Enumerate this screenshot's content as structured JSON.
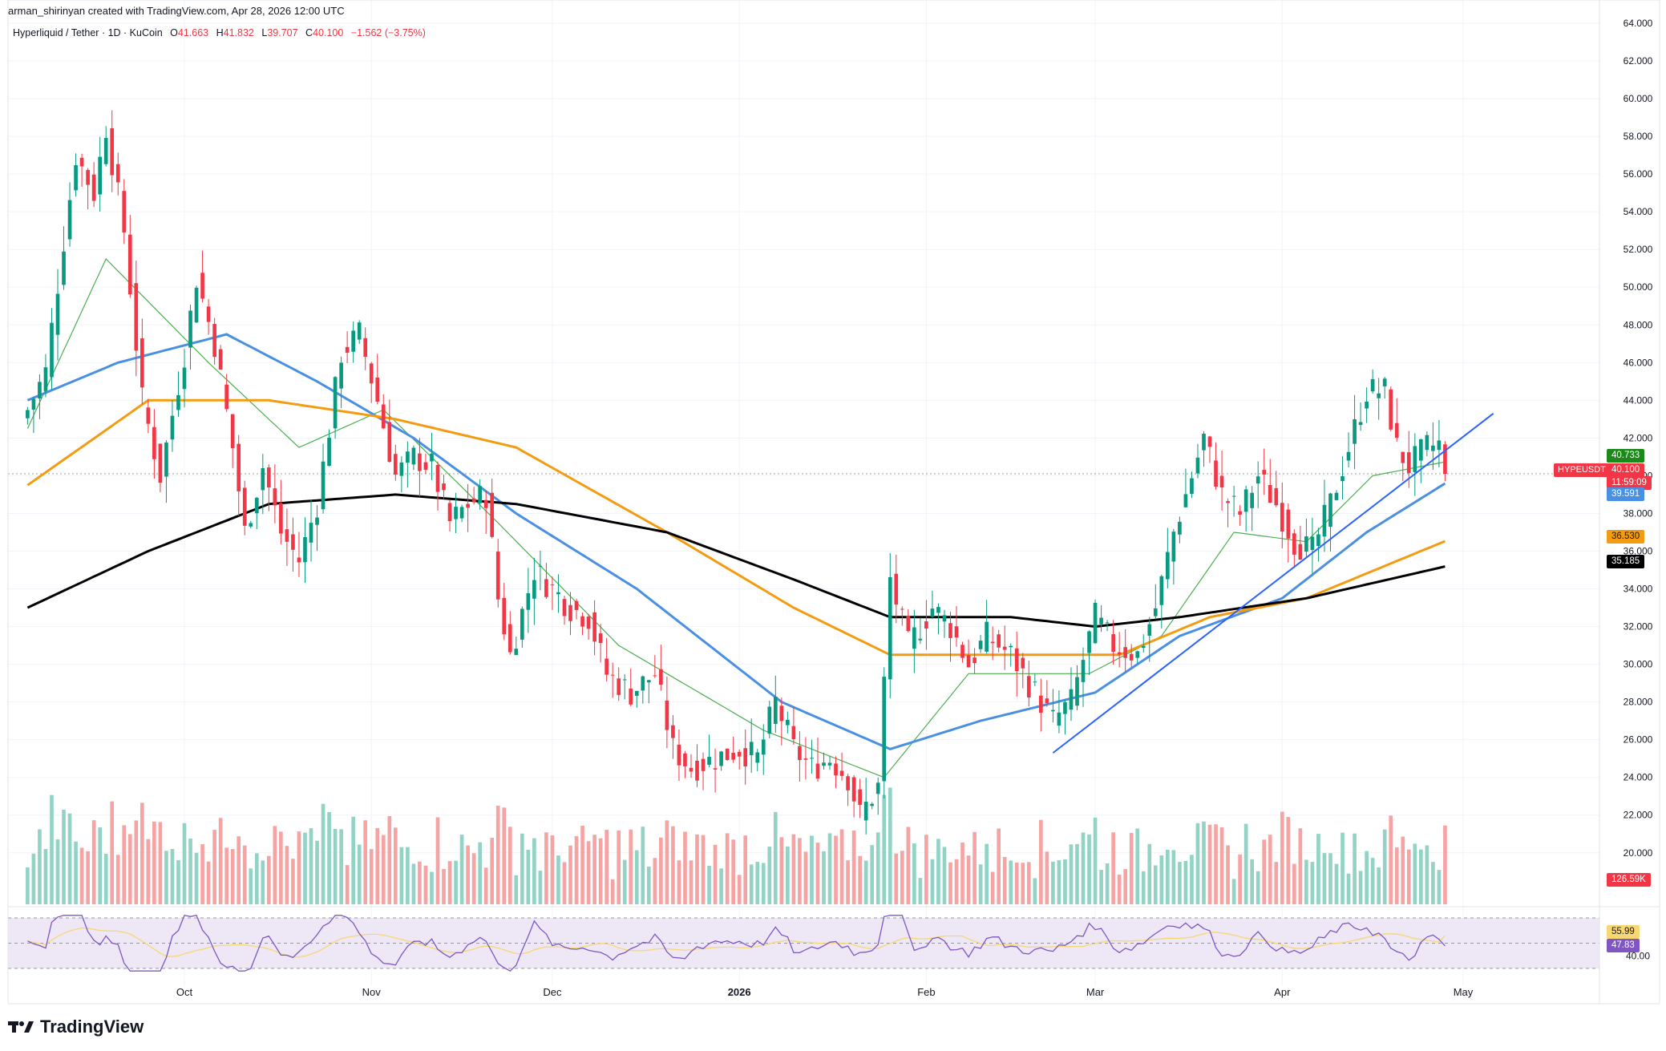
{
  "credit_line": "arman_shirinyan created with TradingView.com, Apr 28, 2026 12:00 UTC",
  "legend": {
    "symbol": "Hyperliquid / Tether · 1D · KuCoin",
    "o_label": "O",
    "o_value": "41.663",
    "h_label": "H",
    "h_value": "41.832",
    "l_label": "L",
    "l_value": "39.707",
    "c_label": "C",
    "c_value": "40.100",
    "change": "−1.562 (−3.75%)"
  },
  "price_tags": {
    "ma_green": "40.733",
    "last_price": "40.100",
    "countdown": "11:59:09",
    "symbol": "HYPEUSDT",
    "ma_blue": "39.591",
    "ma_orange": "36.530",
    "ma_black": "35.185",
    "volume": "126.59K",
    "rsi_ma": "55.99",
    "rsi": "47.83"
  },
  "brand": "TradingView",
  "colors": {
    "up": "#089981",
    "down": "#f23645",
    "vol_up": "#92d3c6",
    "vol_down": "#f5a3a3",
    "ma_green": "#4caf50",
    "ma_blue": "#4a90e2",
    "ma_orange": "#f39c12",
    "ma_black": "#000000",
    "trendline": "#2962ff",
    "rsi": "#7e57c2",
    "rsi_ma": "#f7d774",
    "rsi_band": "#ede7f6"
  },
  "chart_data": {
    "type": "candlestick",
    "title": "Hyperliquid / Tether · 1D · KuCoin",
    "y_axis_ticks": [
      "64.000",
      "62.000",
      "60.000",
      "58.000",
      "56.000",
      "54.000",
      "52.000",
      "50.000",
      "48.000",
      "46.000",
      "44.000",
      "42.000",
      "40.000",
      "38.000",
      "36.000",
      "34.000",
      "32.000",
      "30.000",
      "28.000",
      "26.000",
      "24.000",
      "22.000",
      "20.000"
    ],
    "ylim": [
      19.0,
      64.0
    ],
    "x_axis_labels": [
      "Oct",
      "Nov",
      "Dec",
      "2026",
      "Feb",
      "Mar",
      "Apr",
      "May"
    ],
    "ohlc_waypoints": [
      {
        "date": "2025-09-05",
        "close": 43.5
      },
      {
        "date": "2025-09-08",
        "close": 45.5
      },
      {
        "date": "2025-09-11",
        "close": 52.5
      },
      {
        "date": "2025-09-13",
        "close": 57.0
      },
      {
        "date": "2025-09-16",
        "close": 55.0
      },
      {
        "date": "2025-09-18",
        "close": 58.5
      },
      {
        "date": "2025-09-21",
        "close": 53.0
      },
      {
        "date": "2025-09-24",
        "close": 44.0
      },
      {
        "date": "2025-09-27",
        "close": 40.0
      },
      {
        "date": "2025-10-01",
        "close": 46.5
      },
      {
        "date": "2025-10-03",
        "close": 50.5
      },
      {
        "date": "2025-10-06",
        "close": 47.0
      },
      {
        "date": "2025-10-09",
        "close": 41.5
      },
      {
        "date": "2025-10-11",
        "close": 37.0
      },
      {
        "date": "2025-10-14",
        "close": 40.5
      },
      {
        "date": "2025-10-17",
        "close": 37.0
      },
      {
        "date": "2025-10-20",
        "close": 35.5
      },
      {
        "date": "2025-10-23",
        "close": 38.5
      },
      {
        "date": "2025-10-27",
        "close": 46.5
      },
      {
        "date": "2025-10-30",
        "close": 47.5
      },
      {
        "date": "2025-11-02",
        "close": 44.0
      },
      {
        "date": "2025-11-05",
        "close": 40.0
      },
      {
        "date": "2025-11-08",
        "close": 41.0
      },
      {
        "date": "2025-11-11",
        "close": 40.5
      },
      {
        "date": "2025-11-14",
        "close": 37.5
      },
      {
        "date": "2025-11-17",
        "close": 38.5
      },
      {
        "date": "2025-11-20",
        "close": 39.0
      },
      {
        "date": "2025-11-22",
        "close": 33.5
      },
      {
        "date": "2025-11-24",
        "close": 30.5
      },
      {
        "date": "2025-11-28",
        "close": 35.0
      },
      {
        "date": "2025-12-01",
        "close": 34.0
      },
      {
        "date": "2025-12-04",
        "close": 33.0
      },
      {
        "date": "2025-12-07",
        "close": 32.5
      },
      {
        "date": "2025-12-10",
        "close": 29.5
      },
      {
        "date": "2025-12-14",
        "close": 28.5
      },
      {
        "date": "2025-12-18",
        "close": 29.5
      },
      {
        "date": "2025-12-21",
        "close": 25.5
      },
      {
        "date": "2025-12-24",
        "close": 24.5
      },
      {
        "date": "2025-12-28",
        "close": 25.0
      },
      {
        "date": "2026-01-01",
        "close": 25.5
      },
      {
        "date": "2026-01-04",
        "close": 25.0
      },
      {
        "date": "2026-01-07",
        "close": 28.0
      },
      {
        "date": "2026-01-10",
        "close": 25.5
      },
      {
        "date": "2026-01-13",
        "close": 24.5
      },
      {
        "date": "2026-01-16",
        "close": 25.0
      },
      {
        "date": "2026-01-19",
        "close": 24.0
      },
      {
        "date": "2026-01-21",
        "close": 22.0
      },
      {
        "date": "2026-01-24",
        "close": 23.5
      },
      {
        "date": "2026-01-26",
        "close": 34.5
      },
      {
        "date": "2026-01-29",
        "close": 31.0
      },
      {
        "date": "2026-02-02",
        "close": 33.0
      },
      {
        "date": "2026-02-05",
        "close": 32.0
      },
      {
        "date": "2026-02-08",
        "close": 30.0
      },
      {
        "date": "2026-02-11",
        "close": 31.5
      },
      {
        "date": "2026-02-15",
        "close": 30.5
      },
      {
        "date": "2026-02-19",
        "close": 28.5
      },
      {
        "date": "2026-02-22",
        "close": 27.0
      },
      {
        "date": "2026-02-25",
        "close": 28.0
      },
      {
        "date": "2026-03-01",
        "close": 32.5
      },
      {
        "date": "2026-03-04",
        "close": 31.0
      },
      {
        "date": "2026-03-08",
        "close": 30.5
      },
      {
        "date": "2026-03-11",
        "close": 33.0
      },
      {
        "date": "2026-03-14",
        "close": 37.0
      },
      {
        "date": "2026-03-17",
        "close": 40.0
      },
      {
        "date": "2026-03-19",
        "close": 42.0
      },
      {
        "date": "2026-03-22",
        "close": 39.0
      },
      {
        "date": "2026-03-25",
        "close": 38.0
      },
      {
        "date": "2026-03-28",
        "close": 40.0
      },
      {
        "date": "2026-03-31",
        "close": 38.5
      },
      {
        "date": "2026-04-03",
        "close": 36.5
      },
      {
        "date": "2026-04-06",
        "close": 36.0
      },
      {
        "date": "2026-04-09",
        "close": 38.5
      },
      {
        "date": "2026-04-12",
        "close": 41.5
      },
      {
        "date": "2026-04-15",
        "close": 44.5
      },
      {
        "date": "2026-04-18",
        "close": 44.5
      },
      {
        "date": "2026-04-20",
        "close": 41.5
      },
      {
        "date": "2026-04-22",
        "close": 40.5
      },
      {
        "date": "2026-04-25",
        "close": 41.5
      },
      {
        "date": "2026-04-27",
        "close": 41.663
      },
      {
        "date": "2026-04-28",
        "close": 40.1
      }
    ],
    "last_candle": {
      "date": "2026-04-28",
      "open": 41.663,
      "high": 41.832,
      "low": 39.707,
      "close": 40.1
    },
    "moving_averages": [
      {
        "color": "ma_green",
        "last": 40.733,
        "waypoints": [
          {
            "date": "2025-09-05",
            "value": 42.5
          },
          {
            "date": "2025-09-18",
            "value": 51.5
          },
          {
            "date": "2025-10-05",
            "value": 46.0
          },
          {
            "date": "2025-10-20",
            "value": 41.5
          },
          {
            "date": "2025-11-03",
            "value": 43.5
          },
          {
            "date": "2025-11-22",
            "value": 37.5
          },
          {
            "date": "2025-12-12",
            "value": 31.0
          },
          {
            "date": "2026-01-05",
            "value": 26.5
          },
          {
            "date": "2026-01-25",
            "value": 24.0
          },
          {
            "date": "2026-02-08",
            "value": 29.5
          },
          {
            "date": "2026-02-28",
            "value": 29.5
          },
          {
            "date": "2026-03-12",
            "value": 31.5
          },
          {
            "date": "2026-03-24",
            "value": 37.0
          },
          {
            "date": "2026-04-05",
            "value": 36.5
          },
          {
            "date": "2026-04-16",
            "value": 40.0
          },
          {
            "date": "2026-04-28",
            "value": 40.733
          }
        ]
      },
      {
        "color": "ma_blue",
        "last": 39.591,
        "waypoints": [
          {
            "date": "2025-09-05",
            "value": 44.0
          },
          {
            "date": "2025-09-20",
            "value": 46.0
          },
          {
            "date": "2025-10-08",
            "value": 47.5
          },
          {
            "date": "2025-10-23",
            "value": 45.0
          },
          {
            "date": "2025-11-08",
            "value": 42.0
          },
          {
            "date": "2025-11-25",
            "value": 38.0
          },
          {
            "date": "2025-12-15",
            "value": 34.0
          },
          {
            "date": "2026-01-08",
            "value": 28.0
          },
          {
            "date": "2026-01-26",
            "value": 25.5
          },
          {
            "date": "2026-02-10",
            "value": 27.0
          },
          {
            "date": "2026-03-01",
            "value": 28.5
          },
          {
            "date": "2026-03-15",
            "value": 31.5
          },
          {
            "date": "2026-04-01",
            "value": 33.5
          },
          {
            "date": "2026-04-15",
            "value": 37.0
          },
          {
            "date": "2026-04-28",
            "value": 39.591
          }
        ]
      },
      {
        "color": "ma_orange",
        "last": 36.53,
        "waypoints": [
          {
            "date": "2025-09-05",
            "value": 39.5
          },
          {
            "date": "2025-09-25",
            "value": 44.0
          },
          {
            "date": "2025-10-15",
            "value": 44.0
          },
          {
            "date": "2025-11-05",
            "value": 43.0
          },
          {
            "date": "2025-11-25",
            "value": 41.5
          },
          {
            "date": "2025-12-20",
            "value": 37.0
          },
          {
            "date": "2026-01-10",
            "value": 33.0
          },
          {
            "date": "2026-01-26",
            "value": 30.5
          },
          {
            "date": "2026-02-15",
            "value": 30.5
          },
          {
            "date": "2026-03-05",
            "value": 30.5
          },
          {
            "date": "2026-03-20",
            "value": 32.5
          },
          {
            "date": "2026-04-05",
            "value": 33.5
          },
          {
            "date": "2026-04-28",
            "value": 36.53
          }
        ]
      },
      {
        "color": "ma_black",
        "last": 35.185,
        "waypoints": [
          {
            "date": "2025-09-05",
            "value": 33.0
          },
          {
            "date": "2025-09-25",
            "value": 36.0
          },
          {
            "date": "2025-10-15",
            "value": 38.5
          },
          {
            "date": "2025-11-05",
            "value": 39.0
          },
          {
            "date": "2025-11-25",
            "value": 38.5
          },
          {
            "date": "2025-12-20",
            "value": 37.0
          },
          {
            "date": "2026-01-10",
            "value": 34.5
          },
          {
            "date": "2026-01-26",
            "value": 32.5
          },
          {
            "date": "2026-02-15",
            "value": 32.5
          },
          {
            "date": "2026-03-01",
            "value": 32.0
          },
          {
            "date": "2026-03-15",
            "value": 32.5
          },
          {
            "date": "2026-04-05",
            "value": 33.5
          },
          {
            "date": "2026-04-28",
            "value": 35.185
          }
        ]
      }
    ],
    "trendline": [
      {
        "date": "2026-02-22",
        "value": 25.3
      },
      {
        "date": "2026-05-06",
        "value": 43.3
      }
    ],
    "volume": {
      "last": "126.59K",
      "note": "bars colored by candle direction"
    },
    "rsi": {
      "last": 47.83,
      "ma_last": 55.99,
      "band": [
        30,
        70
      ],
      "tick": "40.00"
    }
  }
}
